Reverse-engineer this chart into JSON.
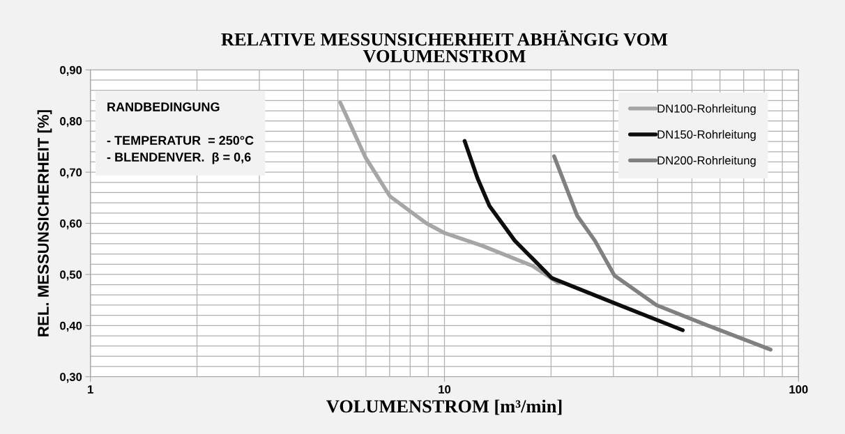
{
  "chart_data": {
    "type": "line",
    "title": "RELATIVE MESSUNSICHERHEIT ABHÄNGIG VOM\nVOLUMENSTROM",
    "xlabel": "VOLUMENSTROM [m³/min]",
    "ylabel": "REL. MESSUNSICHERHEIT [%]",
    "annotations": [
      "RANDBEDINGUNG",
      "- TEMPERATUR  = 250°C",
      "- BLENDENVER.  β = 0,6"
    ],
    "log": "x",
    "xlim": [
      1,
      100
    ],
    "xticks": [
      1,
      {
        "value": 2,
        "label": null
      },
      {
        "value": 3,
        "label": null
      },
      {
        "value": 4,
        "label": null
      },
      {
        "value": 5,
        "label": null
      },
      {
        "value": 6,
        "label": null
      },
      {
        "value": 7,
        "label": null
      },
      {
        "value": 8,
        "label": null
      },
      {
        "value": 9,
        "label": null
      },
      10,
      {
        "value": 20,
        "label": null
      },
      {
        "value": 30,
        "label": null
      },
      {
        "value": 40,
        "label": null
      },
      {
        "value": 50,
        "label": null
      },
      {
        "value": 60,
        "label": null
      },
      {
        "value": 70,
        "label": null
      },
      {
        "value": 80,
        "label": null
      },
      {
        "value": 90,
        "label": null
      },
      100
    ],
    "ylim": [
      0.3,
      0.9
    ],
    "yticks": [
      {
        "value": 0.3,
        "label": "0,30"
      },
      {
        "value": 0.32,
        "label": null
      },
      {
        "value": 0.34,
        "label": null
      },
      {
        "value": 0.36,
        "label": null
      },
      {
        "value": 0.38,
        "label": null
      },
      {
        "value": 0.4,
        "label": "0,40"
      },
      {
        "value": 0.42,
        "label": null
      },
      {
        "value": 0.44,
        "label": null
      },
      {
        "value": 0.46,
        "label": null
      },
      {
        "value": 0.48,
        "label": null
      },
      {
        "value": 0.5,
        "label": "0,50"
      },
      {
        "value": 0.52,
        "label": null
      },
      {
        "value": 0.54,
        "label": null
      },
      {
        "value": 0.56,
        "label": null
      },
      {
        "value": 0.58,
        "label": null
      },
      {
        "value": 0.6,
        "label": "0,60"
      },
      {
        "value": 0.62,
        "label": null
      },
      {
        "value": 0.64,
        "label": null
      },
      {
        "value": 0.66,
        "label": null
      },
      {
        "value": 0.68,
        "label": null
      },
      {
        "value": 0.7,
        "label": "0,70"
      },
      {
        "value": 0.72,
        "label": null
      },
      {
        "value": 0.74,
        "label": null
      },
      {
        "value": 0.76,
        "label": null
      },
      {
        "value": 0.78,
        "label": null
      },
      {
        "value": 0.8,
        "label": "0,80"
      },
      {
        "value": 0.82,
        "label": null
      },
      {
        "value": 0.84,
        "label": null
      },
      {
        "value": 0.86,
        "label": null
      },
      {
        "value": 0.88,
        "label": null
      },
      {
        "value": 0.9,
        "label": "0,90"
      }
    ],
    "grid": true,
    "legend": "top right",
    "marker": "none",
    "line_style": "solid",
    "series": [
      {
        "name": "DN100-Rohrleitung",
        "color": "#a6a6a6",
        "x": [
          5.08,
          5.98,
          7.01,
          8.89,
          10,
          12.8,
          17.7,
          21.0
        ],
        "values": [
          0.836,
          0.729,
          0.653,
          0.6,
          0.581,
          0.556,
          0.517,
          0.483
        ]
      },
      {
        "name": "DN150-Rohrleitung",
        "color": "#0d0d0d",
        "x": [
          11.4,
          12.4,
          13.4,
          15.8,
          20.1,
          30.2,
          47.1
        ],
        "values": [
          0.761,
          0.688,
          0.634,
          0.566,
          0.493,
          0.444,
          0.391
        ]
      },
      {
        "name": "DN200-Rohrleitung",
        "color": "#808080",
        "x": [
          20.4,
          23.7,
          26.6,
          30.2,
          39.7,
          55.0,
          83.4
        ],
        "values": [
          0.731,
          0.615,
          0.566,
          0.498,
          0.44,
          0.401,
          0.353
        ]
      }
    ]
  }
}
